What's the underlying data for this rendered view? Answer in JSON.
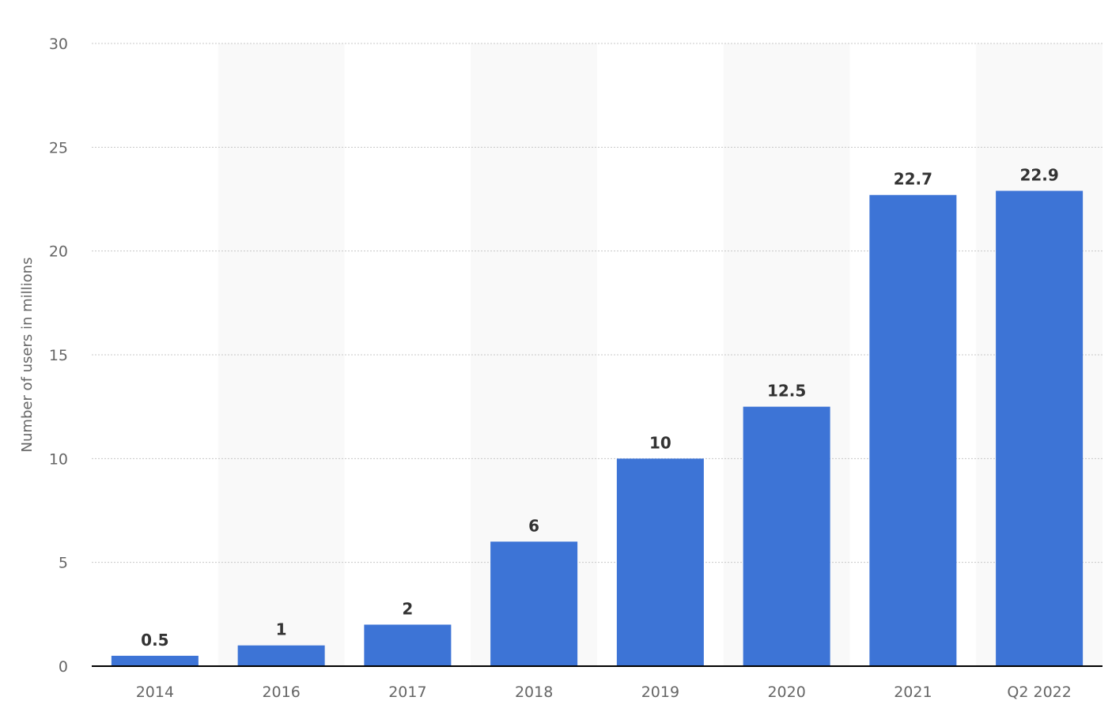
{
  "chart_data": {
    "type": "bar",
    "categories": [
      "2014",
      "2016",
      "2017",
      "2018",
      "2019",
      "2020",
      "2021",
      "Q2 2022"
    ],
    "values": [
      0.5,
      1,
      2,
      6,
      10,
      12.5,
      22.7,
      22.9
    ],
    "data_labels": [
      "0.5",
      "1",
      "2",
      "6",
      "10",
      "12.5",
      "22.7",
      "22.9"
    ],
    "title": "",
    "xlabel": "",
    "ylabel": "Number of users in millions",
    "ylim": [
      0,
      30
    ],
    "yticks": [
      0,
      5,
      10,
      15,
      20,
      25,
      30
    ],
    "ytick_labels": [
      "0",
      "5",
      "10",
      "15",
      "20",
      "25",
      "30"
    ],
    "grid": true,
    "legend": "none",
    "bar_color": "#3d74d6",
    "band_color": "#f9f9f9"
  }
}
